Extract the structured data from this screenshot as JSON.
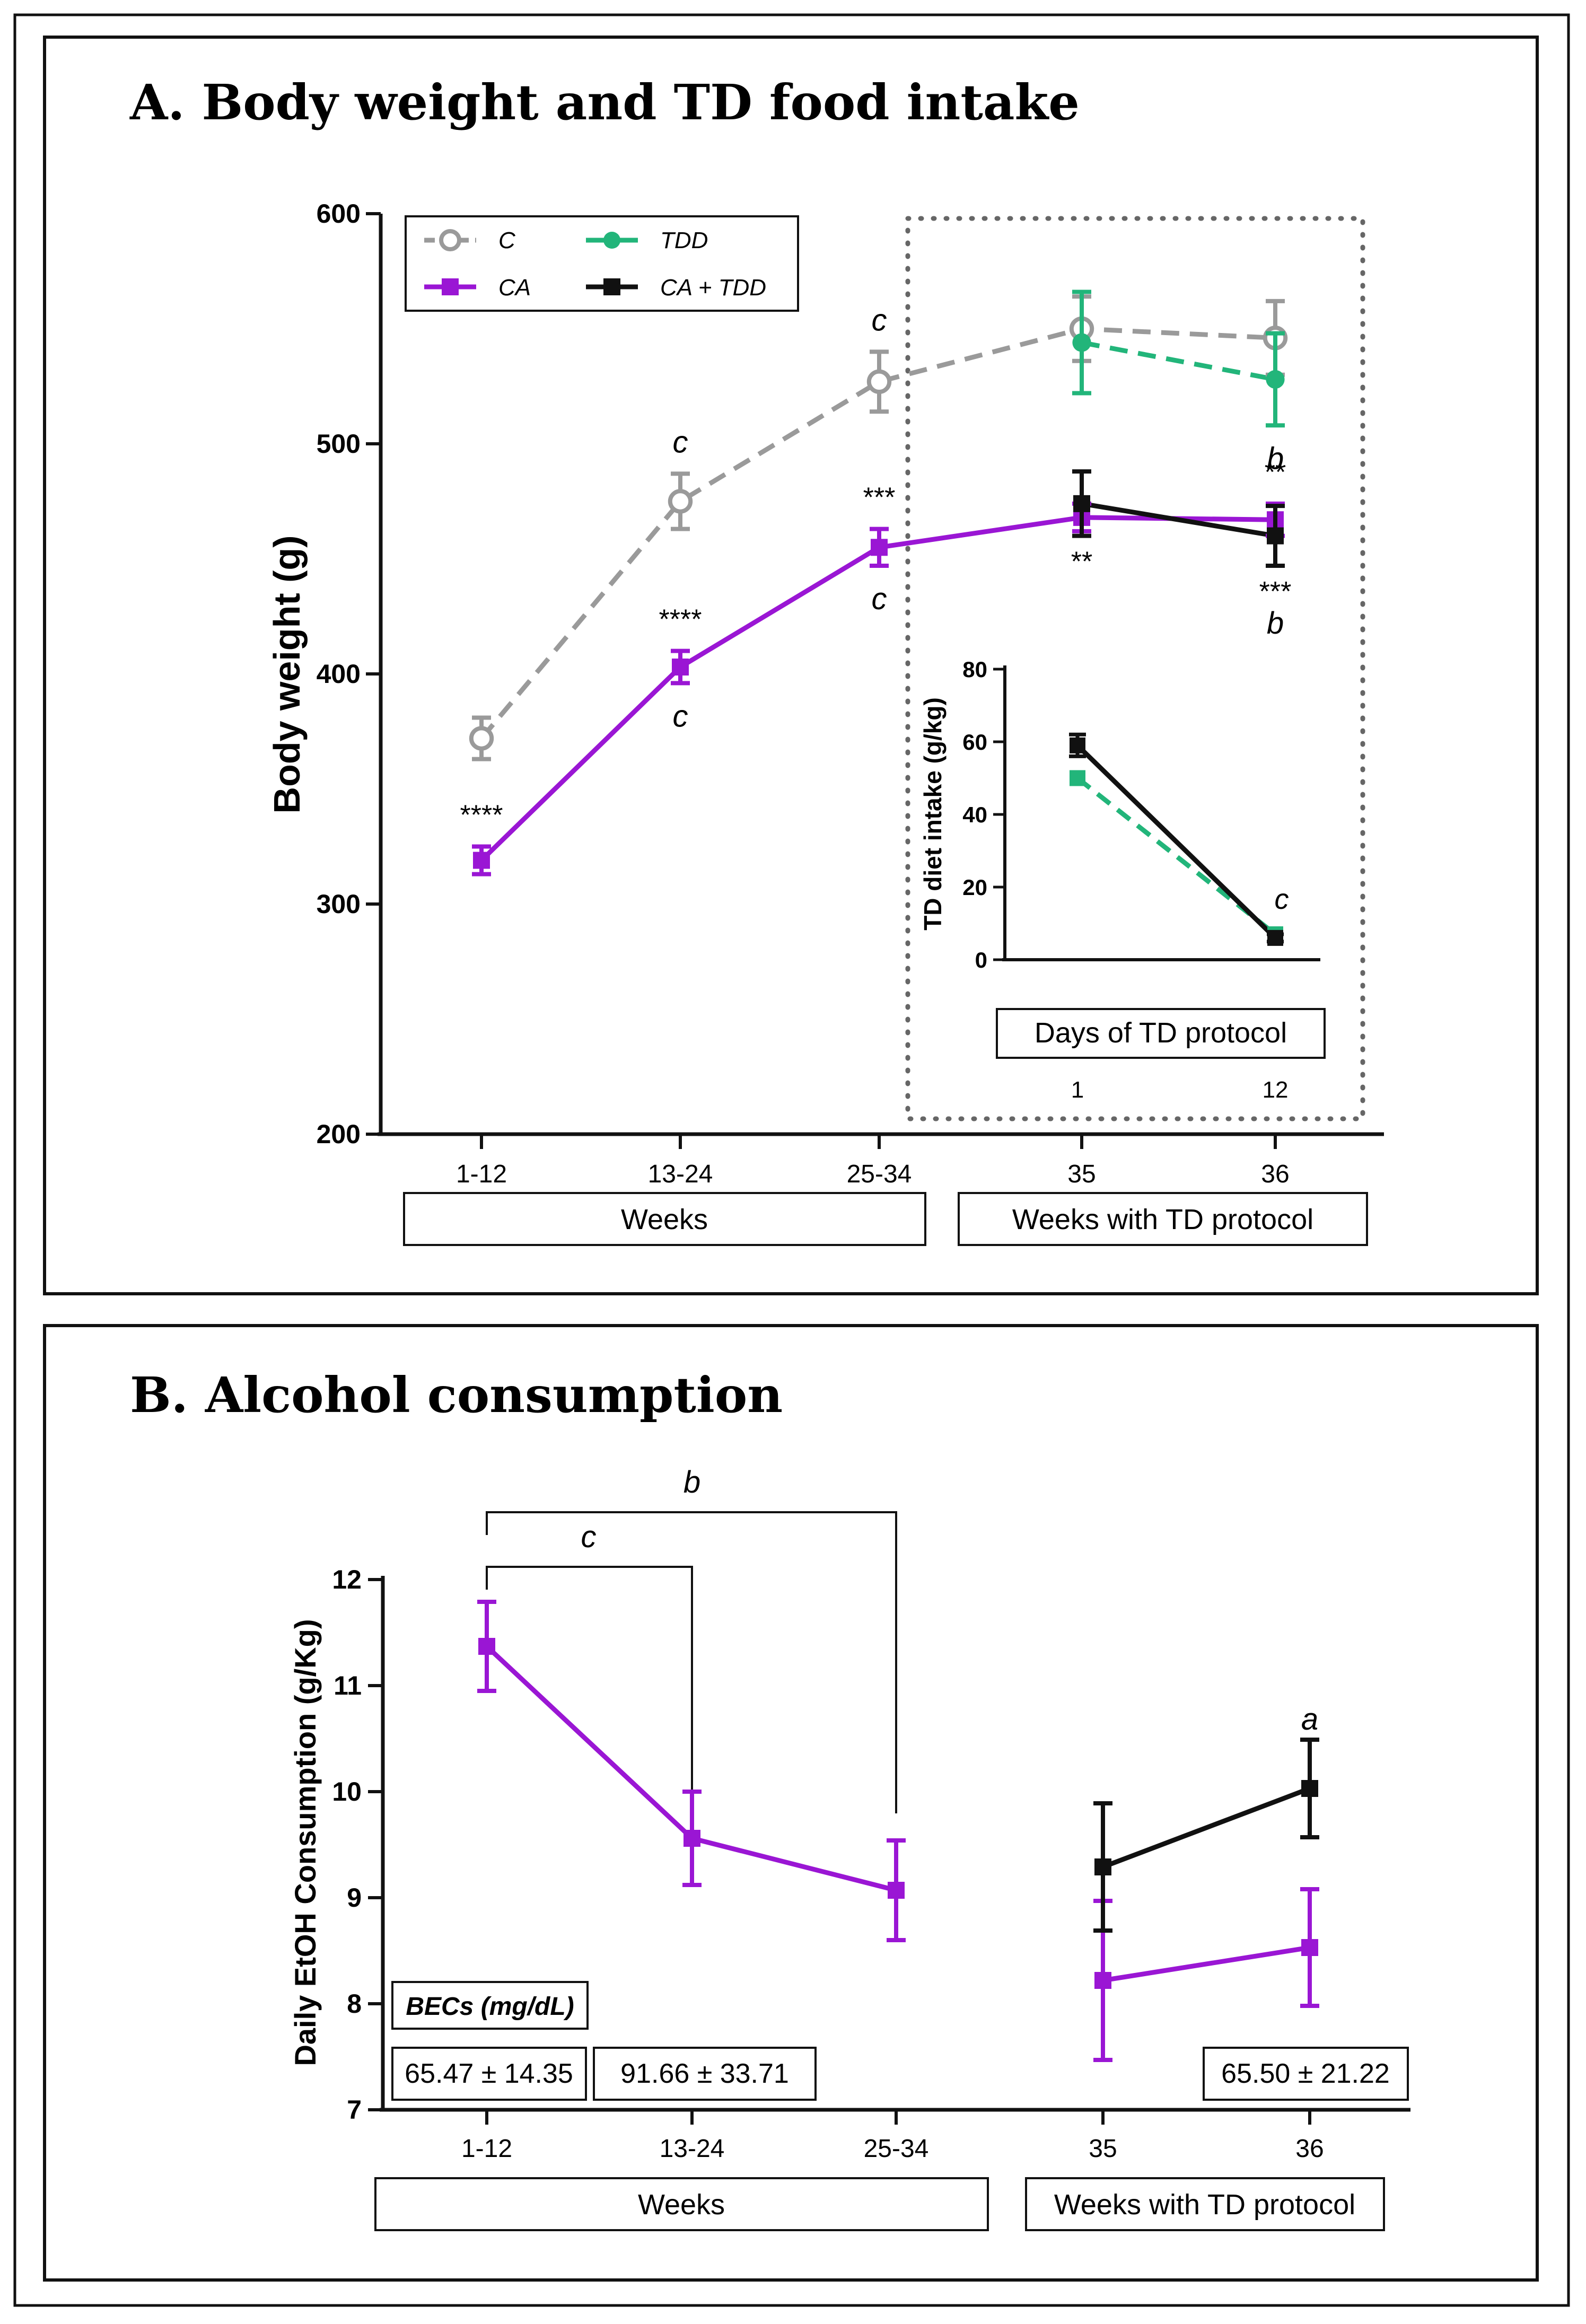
{
  "panelA": {
    "title": "A. Body weight and TD food intake",
    "legend": {
      "c": "C",
      "tdd": "TDD",
      "ca": "CA",
      "catdd": "CA + TDD"
    },
    "insetTitle": "Days of TD protocol",
    "boxWeeks": "Weeks",
    "boxTD": "Weeks with TD protocol"
  },
  "panelB": {
    "title": "B. Alcohol consumption",
    "bracketOuter": "b",
    "bracketInner": "c",
    "becLabel": "BECs (mg/dL)",
    "bec": [
      "65.47 ± 14.35",
      "91.66 ± 33.71",
      "65.50 ± 21.22"
    ],
    "boxWeeks": "Weeks",
    "boxTD": "Weeks with TD protocol",
    "annotation36": "a"
  },
  "colors": {
    "C": "#9a9a9a",
    "CA": "#9a16d4",
    "TDD": "#22b57a",
    "CATDD": "#111111"
  },
  "chart_data": [
    {
      "type": "line",
      "title": "A. Body weight and TD food intake",
      "ylabel": "Body weight (g)",
      "ylim": [
        200,
        600
      ],
      "yticks": [
        "200",
        "300",
        "400",
        "500",
        "600"
      ],
      "categories": [
        "1-12",
        "13-24",
        "25-34",
        "35",
        "36"
      ],
      "series": [
        {
          "name": "C",
          "values": [
            372,
            475,
            527,
            550,
            546
          ],
          "err": [
            9,
            12,
            13,
            14,
            16
          ],
          "line": "dashed"
        },
        {
          "name": "CA",
          "values": [
            319,
            403,
            455,
            468,
            467
          ],
          "err": [
            6,
            7,
            8,
            6,
            7
          ],
          "line": "solid"
        },
        {
          "name": "TDD",
          "values": [
            null,
            null,
            null,
            544,
            528
          ],
          "err": [
            0,
            0,
            0,
            22,
            20
          ],
          "line": "dashed"
        },
        {
          "name": "CA + TDD",
          "values": [
            null,
            null,
            null,
            474,
            460
          ],
          "err": [
            0,
            0,
            0,
            14,
            13
          ],
          "line": "solid"
        }
      ],
      "annotations": [
        {
          "category": "1-12",
          "text": "****",
          "pos": "above-CA"
        },
        {
          "category": "13-24",
          "text": "c",
          "pos": "above-C"
        },
        {
          "category": "13-24",
          "text": "****",
          "pos": "above-CA"
        },
        {
          "category": "13-24",
          "text": "c",
          "pos": "below-CA"
        },
        {
          "category": "25-34",
          "text": "c",
          "pos": "above-C"
        },
        {
          "category": "25-34",
          "text": "***",
          "pos": "above-CA"
        },
        {
          "category": "25-34",
          "text": "c",
          "pos": "below-CA"
        },
        {
          "category": "35",
          "text": "**",
          "pos": "below-CATDD"
        },
        {
          "category": "36",
          "text": "b",
          "pos": "below-TDD"
        },
        {
          "category": "36",
          "text": "**",
          "pos": "above-CA"
        },
        {
          "category": "36",
          "text": "***",
          "pos": "below-CATDD"
        },
        {
          "category": "36",
          "text": "b",
          "pos": "below-CATDD-2"
        }
      ]
    },
    {
      "type": "line",
      "title": "Days of TD protocol",
      "ylabel": "TD diet intake (g/kg)",
      "ylim": [
        0,
        80
      ],
      "yticks": [
        "0",
        "20",
        "40",
        "60",
        "80"
      ],
      "categories": [
        "1",
        "12"
      ],
      "series": [
        {
          "name": "TDD",
          "values": [
            50,
            7
          ],
          "line": "dashed"
        },
        {
          "name": "CA + TDD",
          "values": [
            59,
            6
          ],
          "err": [
            3,
            1
          ],
          "line": "solid"
        }
      ],
      "annotations": [
        {
          "category": "12",
          "text": "c"
        }
      ]
    },
    {
      "type": "line",
      "title": "B. Alcohol consumption",
      "ylabel": "Daily EtOH Consumption (g/Kg)",
      "ylim": [
        7,
        12
      ],
      "yticks": [
        "7",
        "8",
        "9",
        "10",
        "11",
        "12"
      ],
      "categories": [
        "1-12",
        "13-24",
        "25-34",
        "35",
        "36"
      ],
      "series": [
        {
          "name": "CA",
          "values": [
            11.37,
            9.56,
            9.07,
            8.22,
            8.53
          ],
          "err": [
            0.42,
            0.44,
            0.47,
            0.75,
            0.55
          ]
        },
        {
          "name": "CA + TDD",
          "values": [
            null,
            null,
            null,
            9.29,
            10.03
          ],
          "err": [
            0,
            0,
            0,
            0.6,
            0.46
          ]
        }
      ]
    }
  ]
}
